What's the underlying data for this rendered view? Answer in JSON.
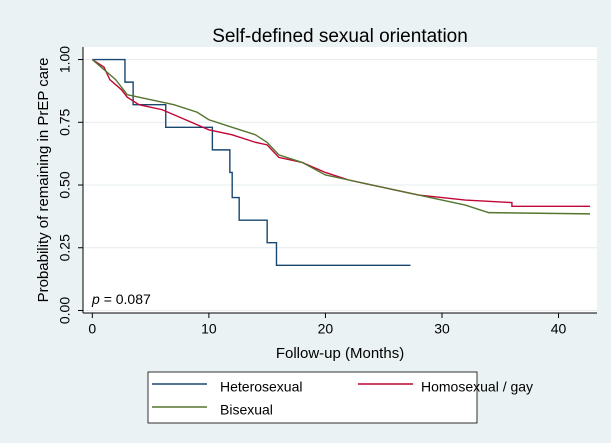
{
  "chart_data": {
    "type": "line",
    "title": "Self-defined sexual orientation",
    "x_label": "Follow-up (Months)",
    "y_label": "Probability of remaining in PrEP care",
    "annotation": {
      "symbol": "p",
      "text": "= 0.087"
    },
    "xlim": [
      -0.8,
      43.3
    ],
    "ylim": [
      -0.01,
      1.05
    ],
    "xticks": [
      0,
      10,
      20,
      30,
      40
    ],
    "yticks": [
      {
        "value": 0,
        "label": "0.00"
      },
      {
        "value": 0.25,
        "label": "0.25"
      },
      {
        "value": 0.5,
        "label": "0.50"
      },
      {
        "value": 0.75,
        "label": "0.75"
      },
      {
        "value": 1,
        "label": "1.00"
      }
    ],
    "grid": true,
    "series": [
      {
        "name": "Heterosexual",
        "color": "#1a476f",
        "x": [
          0,
          2.8,
          2.8,
          3.5,
          3.5,
          6.3,
          6.3,
          10.3,
          10.3,
          11.8,
          11.8,
          12.0,
          12.0,
          12.6,
          12.6,
          15.0,
          15.0,
          15.8,
          15.8,
          27.3
        ],
        "values": [
          1.0,
          1.0,
          0.91,
          0.91,
          0.82,
          0.82,
          0.73,
          0.73,
          0.64,
          0.64,
          0.55,
          0.55,
          0.45,
          0.45,
          0.36,
          0.36,
          0.27,
          0.27,
          0.18,
          0.18
        ]
      },
      {
        "name": "Homosexual / gay",
        "color": "#c10534",
        "x": [
          0,
          1,
          1.5,
          2.5,
          3,
          4,
          6,
          8,
          10,
          12,
          14,
          15,
          16,
          18,
          20,
          22,
          24,
          26,
          28,
          30,
          32,
          36,
          36,
          42.7
        ],
        "values": [
          1.0,
          0.97,
          0.92,
          0.88,
          0.85,
          0.82,
          0.8,
          0.76,
          0.72,
          0.7,
          0.67,
          0.66,
          0.61,
          0.59,
          0.55,
          0.52,
          0.5,
          0.48,
          0.46,
          0.45,
          0.44,
          0.43,
          0.415,
          0.415
        ]
      },
      {
        "name": "Bisexual",
        "color": "#55752f",
        "x": [
          0,
          1,
          2,
          3,
          5,
          7,
          9,
          10,
          12,
          14,
          15,
          16,
          18,
          20,
          22,
          24,
          26,
          28,
          30,
          32,
          34,
          42.7
        ],
        "values": [
          1.0,
          0.96,
          0.92,
          0.86,
          0.84,
          0.82,
          0.79,
          0.76,
          0.73,
          0.7,
          0.67,
          0.62,
          0.59,
          0.54,
          0.52,
          0.5,
          0.48,
          0.46,
          0.44,
          0.42,
          0.39,
          0.385
        ]
      }
    ]
  }
}
